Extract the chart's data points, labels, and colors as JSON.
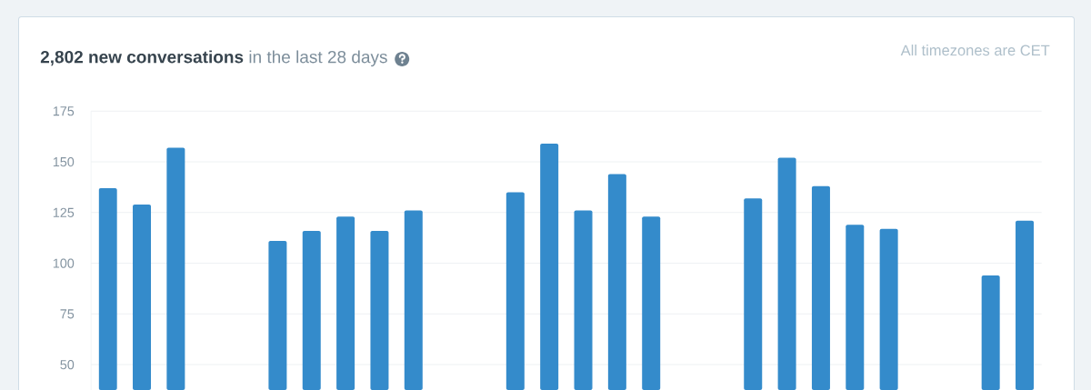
{
  "chart_data": {
    "type": "bar",
    "title": "**2,802 new conversations** in the last 28 days",
    "annotations": [
      "All timezones are CET"
    ],
    "categories": [
      null,
      null,
      null,
      null,
      null,
      null,
      null,
      null,
      null,
      null,
      null,
      null,
      null,
      null,
      null,
      null,
      null,
      null,
      null,
      null,
      null,
      null,
      null,
      null,
      null,
      null,
      null,
      null
    ],
    "values": [
      137,
      129,
      157,
      null,
      null,
      111,
      116,
      123,
      116,
      126,
      null,
      null,
      135,
      159,
      126,
      144,
      123,
      null,
      null,
      132,
      152,
      138,
      119,
      117,
      null,
      null,
      94,
      121
    ],
    "color": "#348bcb",
    "ylim": [
      37.5,
      175
    ],
    "yticks": [
      50,
      75,
      100,
      125,
      150,
      175
    ],
    "grid": "y"
  }
}
